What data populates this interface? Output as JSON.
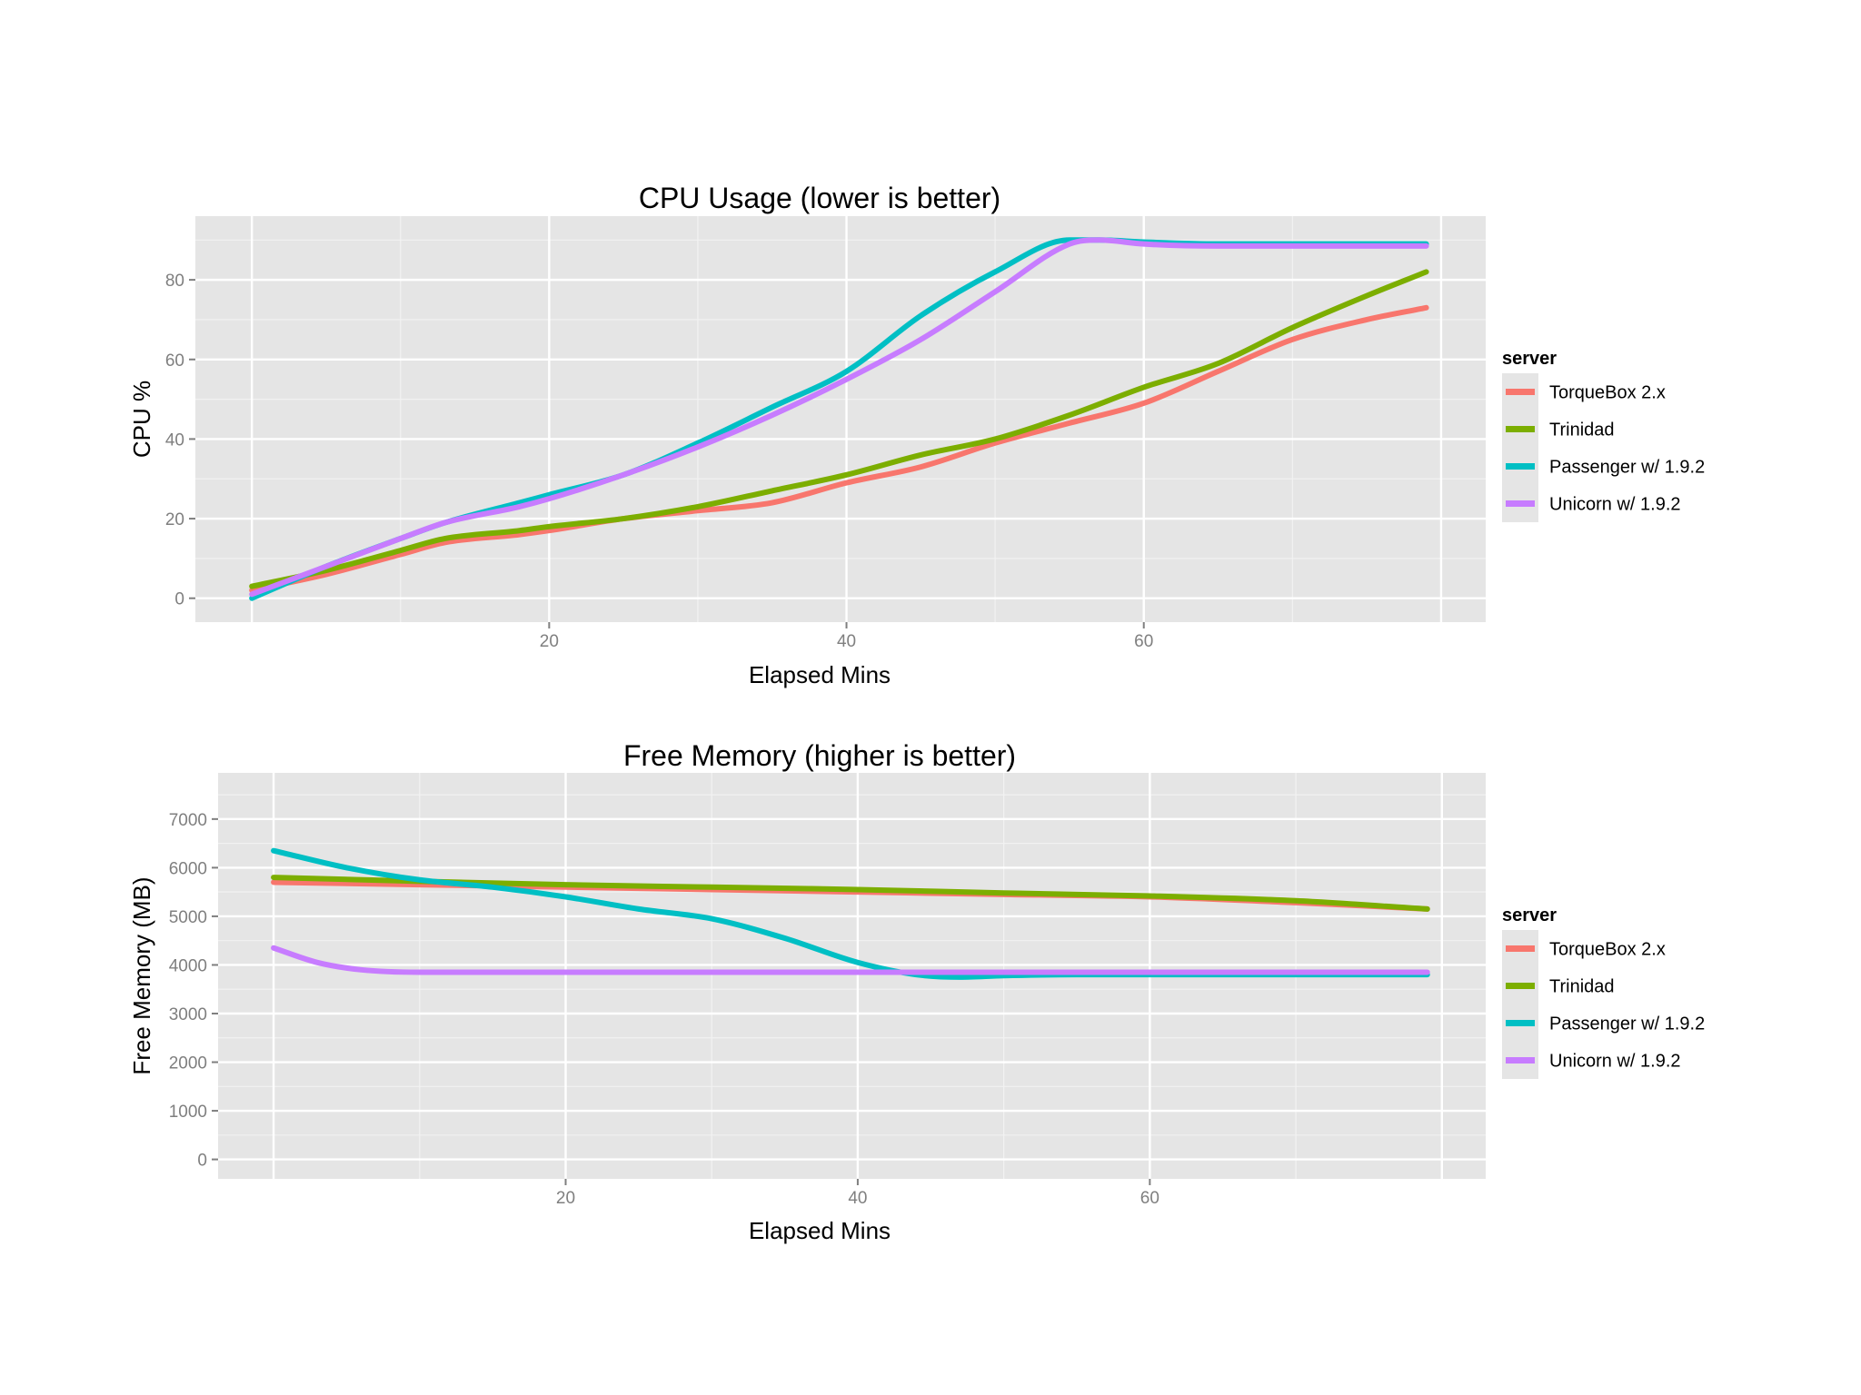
{
  "chart_data": [
    {
      "type": "line",
      "title": "CPU Usage (lower is better)",
      "xlabel": "Elapsed Mins",
      "ylabel": "CPU %",
      "xlim": [
        -3.8,
        83
      ],
      "ylim": [
        -6,
        96
      ],
      "xticks": [
        20,
        40,
        60
      ],
      "yticks": [
        0,
        20,
        40,
        60,
        80
      ],
      "xtick_labels": [
        "20",
        "40",
        "60"
      ],
      "ytick_labels": [
        "0",
        "20",
        "40",
        "60",
        "80"
      ],
      "legend": {
        "title": "server",
        "position": "right",
        "labels": [
          "TorqueBox 2.x",
          "Trinidad",
          "Passenger w/ 1.9.2",
          "Unicorn w/ 1.9.2"
        ]
      },
      "series": [
        {
          "name": "TorqueBox 2.x",
          "color": "#F8766D",
          "x": [
            0,
            5,
            10,
            13,
            18,
            20,
            25,
            30,
            35,
            40,
            45,
            50,
            55,
            60,
            65,
            70,
            75,
            79
          ],
          "y": [
            2,
            6,
            11,
            14,
            16,
            17,
            20,
            22,
            24,
            29,
            33,
            39,
            44,
            49,
            57,
            65,
            70,
            73
          ]
        },
        {
          "name": "Trinidad",
          "color": "#7CAE00",
          "x": [
            0,
            5,
            10,
            13,
            18,
            20,
            25,
            30,
            35,
            40,
            45,
            50,
            55,
            60,
            65,
            70,
            75,
            79
          ],
          "y": [
            3,
            7,
            12,
            15,
            17,
            18,
            20,
            23,
            27,
            31,
            36,
            40,
            46,
            53,
            59,
            68,
            76,
            82
          ]
        },
        {
          "name": "Passenger w/ 1.9.2",
          "color": "#00BFC4",
          "x": [
            0,
            5,
            10,
            13,
            18,
            20,
            25,
            30,
            35,
            40,
            45,
            50,
            55,
            57,
            60,
            65,
            70,
            75,
            79
          ],
          "y": [
            0,
            8,
            15,
            19,
            24,
            26,
            31,
            39,
            48,
            57,
            71,
            82,
            90,
            90,
            89.5,
            89,
            89,
            89,
            89
          ]
        },
        {
          "name": "Unicorn w/ 1.9.2",
          "color": "#C77CFF",
          "x": [
            0,
            5,
            10,
            13,
            18,
            20,
            25,
            30,
            35,
            40,
            45,
            50,
            55,
            57,
            60,
            65,
            70,
            75,
            79
          ],
          "y": [
            1,
            8,
            15,
            19,
            23,
            25,
            31,
            38,
            46,
            55,
            65,
            77,
            89,
            90,
            89,
            88.5,
            88.5,
            88.5,
            88.5
          ]
        }
      ]
    },
    {
      "type": "line",
      "title": "Free Memory (higher is better)",
      "xlabel": "Elapsed Mins",
      "ylabel": "Free Memory (MB)",
      "xlim": [
        -3.8,
        83
      ],
      "ylim": [
        -400,
        7950
      ],
      "xticks": [
        20,
        40,
        60
      ],
      "yticks": [
        0,
        1000,
        2000,
        3000,
        4000,
        5000,
        6000,
        7000
      ],
      "xtick_labels": [
        "20",
        "40",
        "60"
      ],
      "ytick_labels": [
        "0",
        "1000",
        "2000",
        "3000",
        "4000",
        "5000",
        "6000",
        "7000"
      ],
      "legend": {
        "title": "server",
        "position": "right",
        "labels": [
          "TorqueBox 2.x",
          "Trinidad",
          "Passenger w/ 1.9.2",
          "Unicorn w/ 1.9.2"
        ]
      },
      "series": [
        {
          "name": "TorqueBox 2.x",
          "color": "#F8766D",
          "x": [
            0,
            10,
            20,
            30,
            40,
            50,
            60,
            70,
            79
          ],
          "y": [
            5700,
            5650,
            5600,
            5550,
            5500,
            5450,
            5400,
            5280,
            5150
          ]
        },
        {
          "name": "Trinidad",
          "color": "#7CAE00",
          "x": [
            0,
            10,
            20,
            30,
            40,
            50,
            60,
            70,
            79
          ],
          "y": [
            5800,
            5720,
            5650,
            5600,
            5550,
            5480,
            5420,
            5320,
            5150
          ]
        },
        {
          "name": "Passenger w/ 1.9.2",
          "color": "#00BFC4",
          "x": [
            0,
            5,
            10,
            15,
            20,
            25,
            30,
            35,
            40,
            44,
            47,
            50,
            55,
            60,
            65,
            70,
            79
          ],
          "y": [
            6350,
            6000,
            5750,
            5600,
            5400,
            5150,
            4950,
            4550,
            4050,
            3800,
            3750,
            3780,
            3800,
            3800,
            3800,
            3800,
            3800
          ]
        },
        {
          "name": "Unicorn w/ 1.9.2",
          "color": "#C77CFF",
          "x": [
            0,
            3,
            6,
            10,
            15,
            20,
            30,
            40,
            50,
            60,
            70,
            79
          ],
          "y": [
            4350,
            4050,
            3900,
            3850,
            3850,
            3850,
            3850,
            3850,
            3850,
            3850,
            3850,
            3850
          ]
        }
      ]
    }
  ]
}
